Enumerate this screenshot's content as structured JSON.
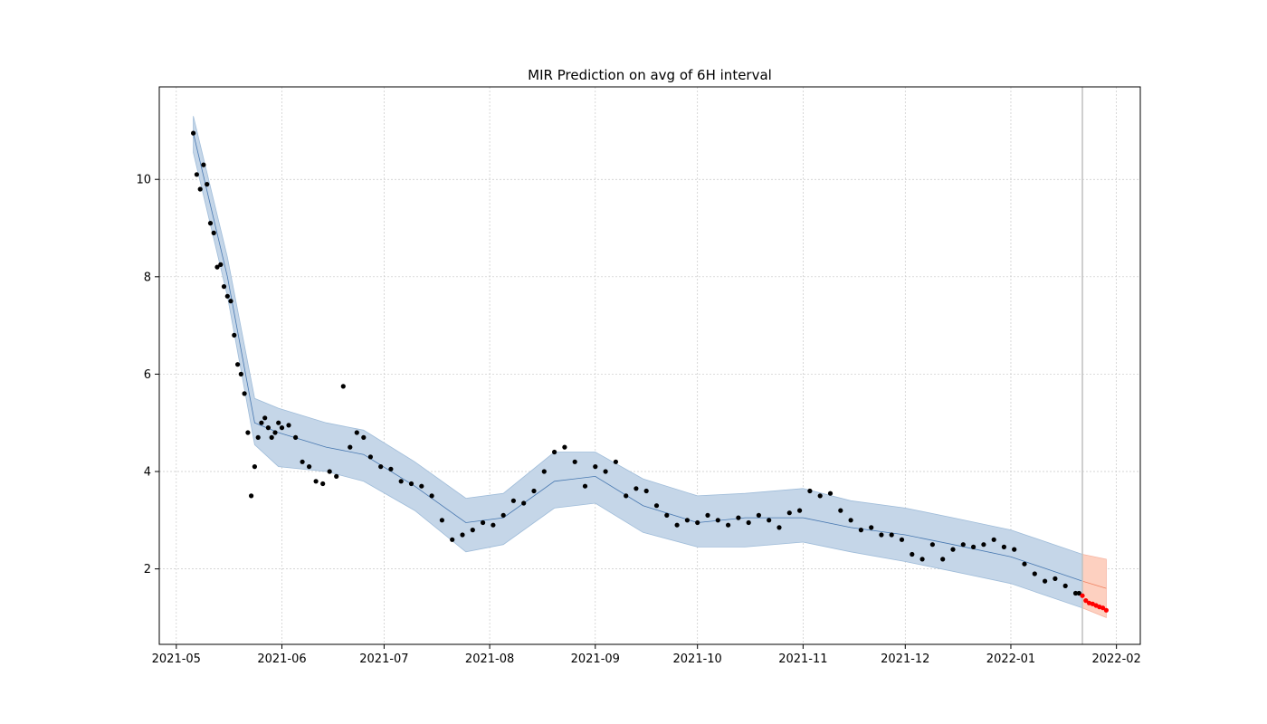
{
  "chart_data": {
    "type": "scatter",
    "title": "MIR Prediction on avg of 6H interval",
    "xlabel": "",
    "ylabel": "",
    "x_axis_type": "date",
    "xlim": [
      "2021-04-26",
      "2022-02-08"
    ],
    "ylim": [
      0.45,
      11.9
    ],
    "x_ticks": [
      "2021-05-01",
      "2021-06-01",
      "2021-07-01",
      "2021-08-01",
      "2021-09-01",
      "2021-10-01",
      "2021-11-01",
      "2021-12-01",
      "2022-01-01",
      "2022-02-01"
    ],
    "x_tick_labels": [
      "2021-05",
      "2021-06",
      "2021-07",
      "2021-08",
      "2021-09",
      "2021-10",
      "2021-11",
      "2021-12",
      "2022-01",
      "2022-02"
    ],
    "y_ticks": [
      2,
      4,
      6,
      8,
      10
    ],
    "y_tick_labels": [
      "2",
      "4",
      "6",
      "8",
      "10"
    ],
    "grid": true,
    "forecast_start": "2022-01-22",
    "colors": {
      "observed_points": "#000000",
      "forecast_points": "#ff0000",
      "fitted_line": "#4878b0",
      "fitted_band": "#c5d6e8",
      "forecast_line": "#f08060",
      "forecast_band": "#fdd0c0",
      "cutoff_line": "#c0c0c0",
      "grid": "#c8c8c8"
    },
    "series": [
      {
        "kind": "observed",
        "x": [
          "2021-05-06",
          "2021-05-07",
          "2021-05-08",
          "2021-05-09",
          "2021-05-10",
          "2021-05-11",
          "2021-05-12",
          "2021-05-13",
          "2021-05-14",
          "2021-05-15",
          "2021-05-16",
          "2021-05-17",
          "2021-05-18",
          "2021-05-19",
          "2021-05-20",
          "2021-05-21",
          "2021-05-22",
          "2021-05-23",
          "2021-05-24",
          "2021-05-25",
          "2021-05-26",
          "2021-05-27",
          "2021-05-28",
          "2021-05-29",
          "2021-05-30",
          "2021-05-31",
          "2021-06-01",
          "2021-06-03",
          "2021-06-05",
          "2021-06-07",
          "2021-06-09",
          "2021-06-11",
          "2021-06-13",
          "2021-06-15",
          "2021-06-17",
          "2021-06-19",
          "2021-06-21",
          "2021-06-23",
          "2021-06-25",
          "2021-06-27",
          "2021-06-30",
          "2021-07-03",
          "2021-07-06",
          "2021-07-09",
          "2021-07-12",
          "2021-07-15",
          "2021-07-18",
          "2021-07-21",
          "2021-07-24",
          "2021-07-27",
          "2021-07-30",
          "2021-08-02",
          "2021-08-05",
          "2021-08-08",
          "2021-08-11",
          "2021-08-14",
          "2021-08-17",
          "2021-08-20",
          "2021-08-23",
          "2021-08-26",
          "2021-08-29",
          "2021-09-01",
          "2021-09-04",
          "2021-09-07",
          "2021-09-10",
          "2021-09-13",
          "2021-09-16",
          "2021-09-19",
          "2021-09-22",
          "2021-09-25",
          "2021-09-28",
          "2021-10-01",
          "2021-10-04",
          "2021-10-07",
          "2021-10-10",
          "2021-10-13",
          "2021-10-16",
          "2021-10-19",
          "2021-10-22",
          "2021-10-25",
          "2021-10-28",
          "2021-10-31",
          "2021-11-03",
          "2021-11-06",
          "2021-11-09",
          "2021-11-12",
          "2021-11-15",
          "2021-11-18",
          "2021-11-21",
          "2021-11-24",
          "2021-11-27",
          "2021-11-30",
          "2021-12-03",
          "2021-12-06",
          "2021-12-09",
          "2021-12-12",
          "2021-12-15",
          "2021-12-18",
          "2021-12-21",
          "2021-12-24",
          "2021-12-27",
          "2021-12-30",
          "2022-01-02",
          "2022-01-05",
          "2022-01-08",
          "2022-01-11",
          "2022-01-14",
          "2022-01-17",
          "2022-01-20",
          "2022-01-21"
        ],
        "y": [
          10.95,
          10.1,
          9.8,
          10.3,
          9.9,
          9.1,
          8.9,
          8.2,
          8.25,
          7.8,
          7.6,
          7.5,
          6.8,
          6.2,
          6.0,
          5.6,
          4.8,
          3.5,
          4.1,
          4.7,
          5.0,
          5.1,
          4.9,
          4.7,
          4.8,
          5.0,
          4.9,
          4.95,
          4.7,
          4.2,
          4.1,
          3.8,
          3.75,
          4.0,
          3.9,
          5.75,
          4.5,
          4.8,
          4.7,
          4.3,
          4.1,
          4.05,
          3.8,
          3.75,
          3.7,
          3.5,
          3.0,
          2.6,
          2.7,
          2.8,
          2.95,
          2.9,
          3.1,
          3.4,
          3.35,
          3.6,
          4.0,
          4.4,
          4.5,
          4.2,
          3.7,
          4.1,
          4.0,
          4.2,
          3.5,
          3.65,
          3.6,
          3.3,
          3.1,
          2.9,
          3.0,
          2.95,
          3.1,
          3.0,
          2.9,
          3.05,
          2.95,
          3.1,
          3.0,
          2.85,
          3.15,
          3.2,
          3.6,
          3.5,
          3.55,
          3.2,
          3.0,
          2.8,
          2.85,
          2.7,
          2.7,
          2.6,
          2.3,
          2.2,
          2.5,
          2.2,
          2.4,
          2.5,
          2.45,
          2.5,
          2.6,
          2.45,
          2.4,
          2.1,
          1.9,
          1.75,
          1.8,
          1.65,
          1.5,
          1.5
        ]
      },
      {
        "kind": "forecast",
        "x": [
          "2022-01-22",
          "2022-01-23",
          "2022-01-24",
          "2022-01-25",
          "2022-01-26",
          "2022-01-27",
          "2022-01-28",
          "2022-01-29"
        ],
        "y": [
          1.45,
          1.35,
          1.3,
          1.28,
          1.25,
          1.22,
          1.2,
          1.15
        ]
      }
    ],
    "fitted": {
      "x": [
        "2021-05-06",
        "2021-05-16",
        "2021-05-24",
        "2021-05-31",
        "2021-06-14",
        "2021-06-25",
        "2021-07-10",
        "2021-07-25",
        "2021-08-05",
        "2021-08-20",
        "2021-09-01",
        "2021-09-15",
        "2021-10-01",
        "2021-10-15",
        "2021-11-01",
        "2021-11-15",
        "2021-12-01",
        "2021-12-15",
        "2022-01-01",
        "2022-01-22",
        "2022-01-29"
      ],
      "yhat": [
        10.95,
        8.0,
        5.0,
        4.8,
        4.5,
        4.35,
        3.7,
        2.95,
        3.05,
        3.8,
        3.9,
        3.3,
        2.95,
        3.05,
        3.05,
        2.85,
        2.7,
        2.5,
        2.25,
        1.75,
        1.6
      ],
      "lower": [
        10.55,
        7.6,
        4.55,
        4.1,
        4.0,
        3.8,
        3.2,
        2.35,
        2.5,
        3.25,
        3.35,
        2.75,
        2.45,
        2.45,
        2.55,
        2.35,
        2.15,
        1.95,
        1.7,
        1.2,
        1.0
      ],
      "upper": [
        11.3,
        8.4,
        5.5,
        5.3,
        5.0,
        4.85,
        4.2,
        3.45,
        3.55,
        4.4,
        4.4,
        3.85,
        3.5,
        3.55,
        3.65,
        3.4,
        3.25,
        3.05,
        2.8,
        2.3,
        2.2
      ]
    }
  }
}
